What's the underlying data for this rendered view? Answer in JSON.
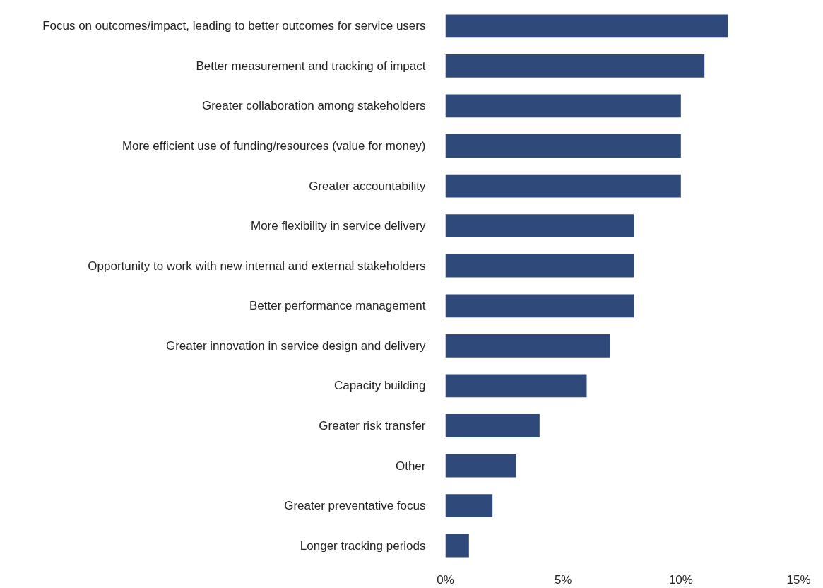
{
  "chart_data": {
    "type": "bar",
    "orientation": "horizontal",
    "categories": [
      "Focus on outcomes/impact, leading to better outcomes for service users",
      "Better measurement and tracking of impact",
      "Greater collaboration among stakeholders",
      "More efficient use of funding/resources (value for money)",
      "Greater accountability",
      "More flexibility in service delivery",
      "Opportunity to work with new internal and external stakeholders",
      "Better performance management",
      "Greater innovation in service design and delivery",
      "Capacity building",
      "Greater risk transfer",
      "Other",
      "Greater preventative focus",
      "Longer tracking periods"
    ],
    "values": [
      12,
      11,
      10,
      10,
      10,
      8,
      8,
      8,
      7,
      6,
      4,
      3,
      2,
      1
    ],
    "color": "#2f4a7a",
    "xlim": [
      0,
      15
    ],
    "xticks": [
      {
        "value": 0,
        "label": "0%"
      },
      {
        "value": 5,
        "label": "5%"
      },
      {
        "value": 10,
        "label": "10%"
      },
      {
        "value": 15,
        "label": "15%"
      }
    ],
    "grid": false
  }
}
